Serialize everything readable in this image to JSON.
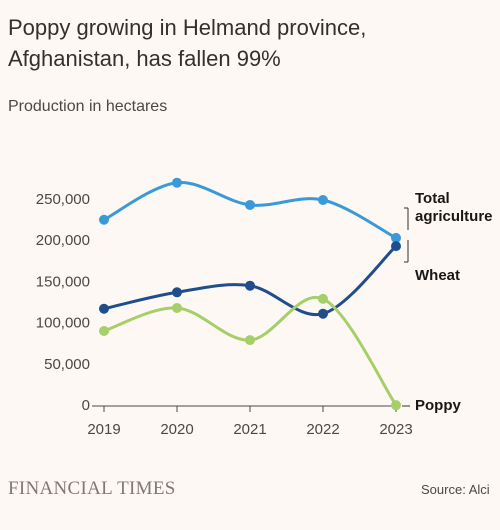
{
  "chart_data": {
    "type": "line",
    "title": "Poppy growing in Helmand province, Afghanistan, has fallen 99%",
    "subtitle": "Production in hectares",
    "categories": [
      "2019",
      "2020",
      "2021",
      "2022",
      "2023"
    ],
    "series": [
      {
        "name": "Total agriculture",
        "color": "#3a9ad9",
        "values": [
          226000,
          271000,
          244000,
          250000,
          204000
        ]
      },
      {
        "name": "Wheat",
        "color": "#1f4e8c",
        "values": [
          118000,
          138000,
          146000,
          112000,
          194000
        ]
      },
      {
        "name": "Poppy",
        "color": "#a6cf6a",
        "values": [
          91000,
          119000,
          80000,
          130000,
          1000
        ]
      }
    ],
    "ylim": [
      0,
      250000
    ],
    "yticks": [
      0,
      {
        "value": 50000,
        "label": "50,000"
      },
      {
        "value": 100000,
        "label": "100,000"
      },
      {
        "value": 150000,
        "label": "150,000"
      },
      {
        "value": 200000,
        "label": "200,000"
      },
      {
        "value": 250000,
        "label": "250,000"
      }
    ],
    "grid": false,
    "source": "Source: Alci",
    "brand": "FINANCIAL TIMES"
  }
}
